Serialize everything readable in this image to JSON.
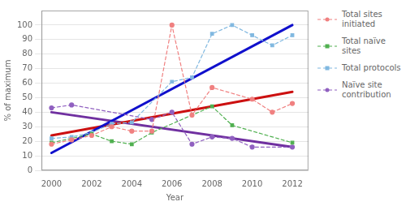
{
  "chart_data": {
    "type": "line",
    "x_label": "Year",
    "y_label": "% of maximum",
    "series": [
      {
        "x": [
          2000,
          2012
        ],
        "values": [
          12,
          100
        ],
        "color": "#1010cc",
        "line_style": "solid",
        "marker": "none"
      },
      {
        "x": [
          2000,
          2012
        ],
        "values": [
          24,
          54
        ],
        "color": "#cc1010",
        "line_style": "solid",
        "marker": "none"
      },
      {
        "x": [
          2000,
          2012
        ],
        "values": [
          40,
          16
        ],
        "color": "#7030a0",
        "line_style": "solid",
        "marker": "none"
      },
      {
        "name": "Total sites\ninitiated",
        "x": [
          2000,
          2001,
          2002,
          2003,
          2004,
          2005,
          2006,
          2007,
          2008,
          2010,
          2011,
          2012
        ],
        "values": [
          18,
          21,
          24,
          30,
          27,
          27,
          100,
          38,
          57,
          49,
          40,
          46
        ],
        "color": "#f08080",
        "line_style": "dashed",
        "marker": "circle"
      },
      {
        "name": "Total naïve\nsites",
        "x": [
          2000,
          2002,
          2003,
          2004,
          2005,
          2008,
          2009,
          2012
        ],
        "values": [
          19,
          25,
          20,
          18,
          26,
          44,
          31,
          19
        ],
        "color": "#50b050",
        "line_style": "dashed",
        "marker": "square"
      },
      {
        "name": "Total protocols",
        "x": [
          2000,
          2001,
          2002,
          2003,
          2004,
          2006,
          2007,
          2008,
          2009,
          2010,
          2011,
          2012
        ],
        "values": [
          22,
          23,
          26,
          32,
          33,
          61,
          64,
          94,
          100,
          93,
          86,
          93
        ],
        "color": "#80b8e0",
        "line_style": "dashed",
        "marker": "square"
      },
      {
        "name": "Naïve site\ncontribution",
        "x": [
          2000,
          2001,
          2005,
          2006,
          2007,
          2008,
          2009,
          2010,
          2012
        ],
        "values": [
          43,
          45,
          35,
          40,
          18,
          23,
          22,
          16,
          16
        ],
        "color": "#9060c0",
        "line_style": "dashed",
        "marker": "circle"
      }
    ],
    "xlim": [
      1999.5,
      2012.8
    ],
    "ylim": [
      0,
      110
    ],
    "xticks": [
      2000,
      2002,
      2004,
      2006,
      2008,
      2010,
      2012
    ],
    "yticks": [
      0,
      10,
      20,
      30,
      40,
      50,
      60,
      70,
      80,
      90,
      100
    ],
    "grid": "y",
    "legend": "right"
  }
}
